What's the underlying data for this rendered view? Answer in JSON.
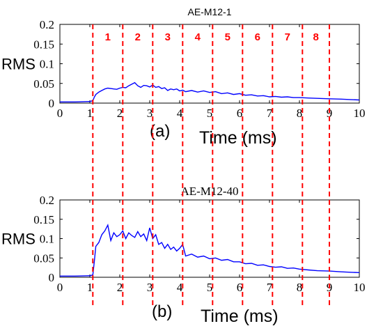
{
  "colors": {
    "series": "#0000ff",
    "markers": "#ff0000",
    "axis": "#000000"
  },
  "markers": {
    "x": [
      1.1,
      2.1,
      3.1,
      4.1,
      5.1,
      6.1,
      7.1,
      8.1,
      9.0
    ],
    "segment_labels": [
      "1",
      "2",
      "3",
      "4",
      "5",
      "6",
      "7",
      "8"
    ]
  },
  "chart_data": [
    {
      "type": "line",
      "title": "AE-M12-1",
      "panel_label": "(a)",
      "xlabel": "Time (ms)",
      "ylabel": "RMS",
      "xlim": [
        0,
        10
      ],
      "ylim": [
        0,
        0.2
      ],
      "xticks": [
        0,
        1,
        2,
        3,
        4,
        5,
        6,
        7,
        8,
        9,
        10
      ],
      "yticks": [
        0,
        0.05,
        0.1,
        0.15,
        0.2
      ],
      "ytick_labels": [
        "0",
        "0.05",
        "0.1",
        "0.15",
        "0.2"
      ],
      "grid": false,
      "x": [
        0,
        0.5,
        1.0,
        1.1,
        1.15,
        1.2,
        1.3,
        1.4,
        1.5,
        1.6,
        1.7,
        1.8,
        1.9,
        2.0,
        2.1,
        2.2,
        2.3,
        2.4,
        2.5,
        2.6,
        2.7,
        2.8,
        2.9,
        3.0,
        3.1,
        3.2,
        3.3,
        3.4,
        3.5,
        3.6,
        3.7,
        3.8,
        3.9,
        4.0,
        4.1,
        4.2,
        4.4,
        4.6,
        4.8,
        5.0,
        5.2,
        5.4,
        5.6,
        5.8,
        6.0,
        6.2,
        6.4,
        6.6,
        6.8,
        7.0,
        7.2,
        7.4,
        7.6,
        7.8,
        8.0,
        8.3,
        8.6,
        9.0,
        9.4,
        9.7,
        10.0
      ],
      "y": [
        0.003,
        0.003,
        0.004,
        0.006,
        0.015,
        0.022,
        0.028,
        0.032,
        0.036,
        0.038,
        0.037,
        0.036,
        0.035,
        0.038,
        0.04,
        0.039,
        0.044,
        0.048,
        0.052,
        0.044,
        0.04,
        0.045,
        0.044,
        0.041,
        0.046,
        0.04,
        0.042,
        0.037,
        0.039,
        0.032,
        0.036,
        0.034,
        0.036,
        0.031,
        0.033,
        0.029,
        0.032,
        0.028,
        0.031,
        0.027,
        0.029,
        0.024,
        0.026,
        0.022,
        0.024,
        0.02,
        0.021,
        0.018,
        0.019,
        0.016,
        0.017,
        0.015,
        0.016,
        0.014,
        0.014,
        0.013,
        0.012,
        0.011,
        0.01,
        0.009,
        0.008
      ]
    },
    {
      "type": "line",
      "title": "AE-M12-40",
      "panel_label": "(b)",
      "xlabel": "Time (ms)",
      "ylabel": "RMS",
      "xlim": [
        0,
        10
      ],
      "ylim": [
        0,
        0.2
      ],
      "xticks": [
        0,
        1,
        2,
        3,
        4,
        5,
        6,
        7,
        8,
        9,
        10
      ],
      "yticks": [
        0,
        0.05,
        0.1,
        0.15,
        0.2
      ],
      "ytick_labels": [
        "0",
        "0.05",
        "0.1",
        "0.15",
        "0.2"
      ],
      "grid": false,
      "x": [
        0,
        0.5,
        1.0,
        1.1,
        1.15,
        1.2,
        1.3,
        1.4,
        1.5,
        1.6,
        1.7,
        1.8,
        1.9,
        2.0,
        2.1,
        2.2,
        2.3,
        2.4,
        2.5,
        2.6,
        2.7,
        2.8,
        2.9,
        3.0,
        3.1,
        3.2,
        3.3,
        3.4,
        3.5,
        3.6,
        3.7,
        3.8,
        3.9,
        4.0,
        4.1,
        4.2,
        4.4,
        4.6,
        4.8,
        5.0,
        5.2,
        5.4,
        5.6,
        5.8,
        6.0,
        6.2,
        6.4,
        6.6,
        6.8,
        7.0,
        7.2,
        7.4,
        7.6,
        7.8,
        8.0,
        8.3,
        8.6,
        9.0,
        9.4,
        9.7,
        10.0
      ],
      "y": [
        0.003,
        0.003,
        0.004,
        0.006,
        0.04,
        0.08,
        0.09,
        0.11,
        0.12,
        0.135,
        0.095,
        0.115,
        0.105,
        0.11,
        0.12,
        0.1,
        0.115,
        0.108,
        0.103,
        0.118,
        0.105,
        0.112,
        0.095,
        0.128,
        0.1,
        0.11,
        0.085,
        0.09,
        0.075,
        0.085,
        0.072,
        0.078,
        0.068,
        0.075,
        0.085,
        0.055,
        0.06,
        0.052,
        0.055,
        0.048,
        0.05,
        0.044,
        0.046,
        0.04,
        0.04,
        0.035,
        0.036,
        0.031,
        0.032,
        0.028,
        0.026,
        0.027,
        0.023,
        0.024,
        0.021,
        0.019,
        0.017,
        0.016,
        0.014,
        0.013,
        0.012
      ]
    }
  ]
}
